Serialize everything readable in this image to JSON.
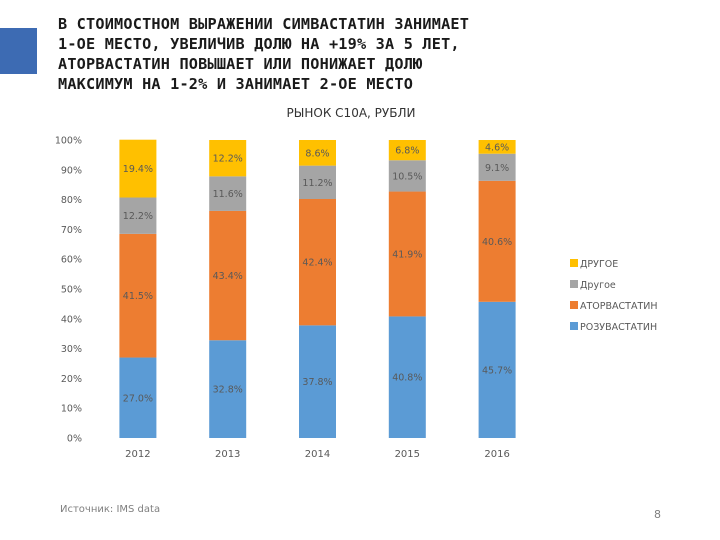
{
  "slide": {
    "headline_lines": [
      "В СТОИМОСТНОМ ВЫРАЖЕНИИ СИМВАСТАТИН ЗАНИМАЕТ",
      "1-ОЕ МЕСТО, УВЕЛИЧИВ ДОЛЮ НА +19% ЗА 5 ЛЕТ,",
      "АТОРВАСТАТИН  ПОВЫШАЕТ ИЛИ ПОНИЖАЕТ ДОЛЮ",
      "МАКСИМУМ НА 1-2% И ЗАНИМАЕТ 2-ОЕ МЕСТО"
    ],
    "accent_color": "#3d6bb3",
    "source": "Источник: IMS data",
    "page_number": "8"
  },
  "chart_data": {
    "type": "bar",
    "stacked": true,
    "percent": true,
    "title": "РЫНОК С10А, РУБЛИ",
    "categories": [
      "2012",
      "2013",
      "2014",
      "2015",
      "2016"
    ],
    "series": [
      {
        "name": "РОЗУВАСТАТИН",
        "color": "#5b9bd5",
        "values": [
          27.0,
          32.8,
          37.8,
          40.8,
          45.7
        ],
        "labels": [
          "27.0%",
          "32.8%",
          "37.8%",
          "40.8%",
          "45.7%"
        ]
      },
      {
        "name": "АТОРВАСТАТИН",
        "color": "#ed7d31",
        "values": [
          41.5,
          43.4,
          42.4,
          41.9,
          40.6
        ],
        "labels": [
          "41.5%",
          "43.4%",
          "42.4%",
          "41.9%",
          "40.6%"
        ]
      },
      {
        "name": "Другое",
        "color": "#a5a5a5",
        "values": [
          12.2,
          11.6,
          11.2,
          10.5,
          9.1
        ],
        "labels": [
          "12.2%",
          "11.6%",
          "11.2%",
          "10.5%",
          "9.1%"
        ]
      },
      {
        "name": "ДРУГОЕ",
        "color": "#ffc000",
        "values": [
          19.4,
          12.2,
          8.6,
          6.8,
          4.6
        ],
        "labels": [
          "19.4%",
          "12.2%",
          "8.6%",
          "6.8%",
          "4.6%"
        ]
      }
    ],
    "y_ticks": [
      "0%",
      "10%",
      "20%",
      "30%",
      "40%",
      "50%",
      "60%",
      "70%",
      "80%",
      "90%",
      "100%"
    ],
    "ylim": [
      0,
      100
    ],
    "legend_order": [
      "ДРУГОЕ",
      "Другое",
      "АТОРВАСТАТИН",
      "РОЗУВАСТАТИН"
    ],
    "legend_position": "right",
    "grid": false,
    "label_color": "#595959"
  }
}
